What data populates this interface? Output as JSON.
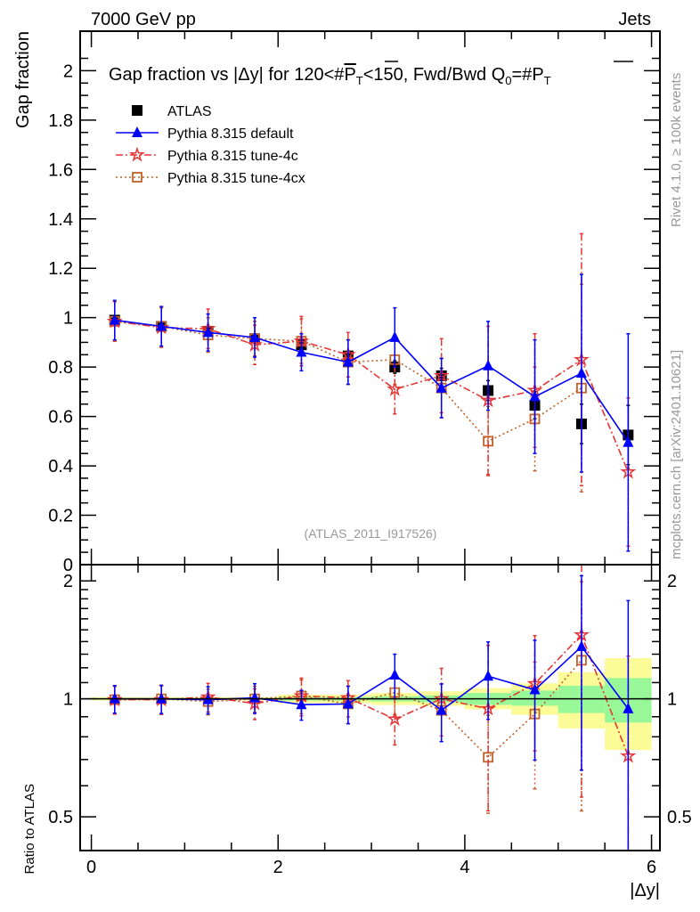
{
  "header": {
    "left": "7000 GeV pp",
    "right": "Jets"
  },
  "side": {
    "rivet": "Rivet 4.1.0, ≥ 100k events",
    "mcplots": "mcplots.cern.ch [arXiv:2401.10621]"
  },
  "colors": {
    "atlas": "#000000",
    "default": "#0000ff",
    "tune4c": "#e53535",
    "tune4cx": "#c0622a",
    "band_inner": "#98f898",
    "band_outer": "#fbfb98"
  },
  "chart_data": {
    "type": "scatter",
    "title_parts": {
      "pre": "Gap fraction vs |Δy| for 120<#",
      "p": "P",
      "t": "T",
      "mid": "<150, Fwd/Bwd Q",
      "zero": "0",
      "eq": "=#",
      "p2": "P",
      "t2": "T"
    },
    "watermark": "(ATLAS_2011_I917526)",
    "xlabel": "|Δy|",
    "ylabel": "Gap fraction",
    "ratio_ylabel": "Ratio to ATLAS",
    "xlim": [
      -0.12,
      6.09
    ],
    "ylim": [
      0,
      2.16
    ],
    "ratio_ylim": [
      0.41,
      2.2
    ],
    "ratio_scale": "log",
    "xticks": [
      0,
      2,
      4,
      6
    ],
    "yticks": [
      0,
      0.2,
      0.4,
      0.6,
      0.8,
      1,
      1.2,
      1.4,
      1.6,
      1.8,
      2
    ],
    "ytick_labels": [
      "0",
      "0.2",
      "0.4",
      "0.6",
      "0.8",
      "1",
      "1.2",
      "1.4",
      "1.6",
      "1.8",
      "2"
    ],
    "ratio_yticks": [
      0.5,
      1,
      2
    ],
    "ratio_ytick_labels": [
      "0.5",
      "1",
      "2"
    ],
    "x": [
      0.25,
      0.75,
      1.25,
      1.75,
      2.25,
      2.75,
      3.25,
      3.75,
      4.25,
      4.75,
      5.25,
      5.75
    ],
    "legend_placement": "top-left",
    "series": [
      {
        "key": "atlas",
        "name": "ATLAS",
        "marker": "filled-square",
        "values": [
          0.99,
          0.965,
          0.945,
          0.915,
          0.89,
          0.845,
          0.8,
          0.765,
          0.705,
          0.645,
          0.57,
          0.525
        ],
        "errors": [
          0.01,
          0.01,
          0.01,
          0.01,
          0.015,
          0.02,
          0.025,
          0.03,
          0.04,
          0.055,
          0.08,
          0.12
        ]
      },
      {
        "key": "default",
        "name": "Pythia 8.315 default",
        "marker": "triangle",
        "line": "solid",
        "values": [
          0.99,
          0.965,
          0.94,
          0.92,
          0.86,
          0.82,
          0.92,
          0.715,
          0.805,
          0.68,
          0.775,
          0.495
        ],
        "errors": [
          0.08,
          0.08,
          0.075,
          0.08,
          0.075,
          0.09,
          0.12,
          0.12,
          0.18,
          0.23,
          0.4,
          0.44
        ]
      },
      {
        "key": "tune4c",
        "name": "Pythia 8.315 tune-4c",
        "marker": "star",
        "line": "dashdot",
        "values": [
          0.985,
          0.96,
          0.955,
          0.89,
          0.905,
          0.85,
          0.71,
          0.765,
          0.665,
          0.705,
          0.83,
          0.375
        ],
        "errors": [
          0.08,
          0.08,
          0.08,
          0.08,
          0.1,
          0.09,
          0.1,
          0.15,
          0.3,
          0.23,
          0.51,
          0.3
        ]
      },
      {
        "key": "tune4cx",
        "name": "Pythia 8.315 tune-4cx",
        "marker": "open-square",
        "line": "dotted",
        "values": [
          0.985,
          0.965,
          0.93,
          0.915,
          0.905,
          0.82,
          0.83,
          0.715,
          0.5,
          0.59,
          0.715,
          null
        ],
        "errors": [
          0.08,
          0.08,
          0.07,
          0.07,
          0.09,
          0.09,
          0.1,
          0.12,
          0.14,
          0.21,
          0.42,
          null
        ]
      }
    ],
    "ratio_band": {
      "edges": [
        0,
        0.5,
        1,
        1.5,
        2,
        2.5,
        3,
        3.5,
        4,
        4.5,
        5,
        5.5,
        6
      ],
      "inner_up": [
        1.005,
        1.005,
        1.005,
        1.005,
        1.01,
        1.01,
        1.015,
        1.02,
        1.035,
        1.05,
        1.08,
        1.13
      ],
      "inner_down": [
        0.995,
        0.995,
        0.995,
        0.995,
        0.99,
        0.99,
        0.985,
        0.98,
        0.965,
        0.96,
        0.92,
        0.87
      ],
      "outer_up": [
        1.01,
        1.01,
        1.01,
        1.01,
        1.025,
        1.025,
        1.035,
        1.045,
        1.065,
        1.095,
        1.17,
        1.27
      ],
      "outer_down": [
        0.99,
        0.99,
        0.99,
        0.99,
        0.975,
        0.975,
        0.965,
        0.96,
        0.94,
        0.91,
        0.84,
        0.74
      ]
    }
  }
}
